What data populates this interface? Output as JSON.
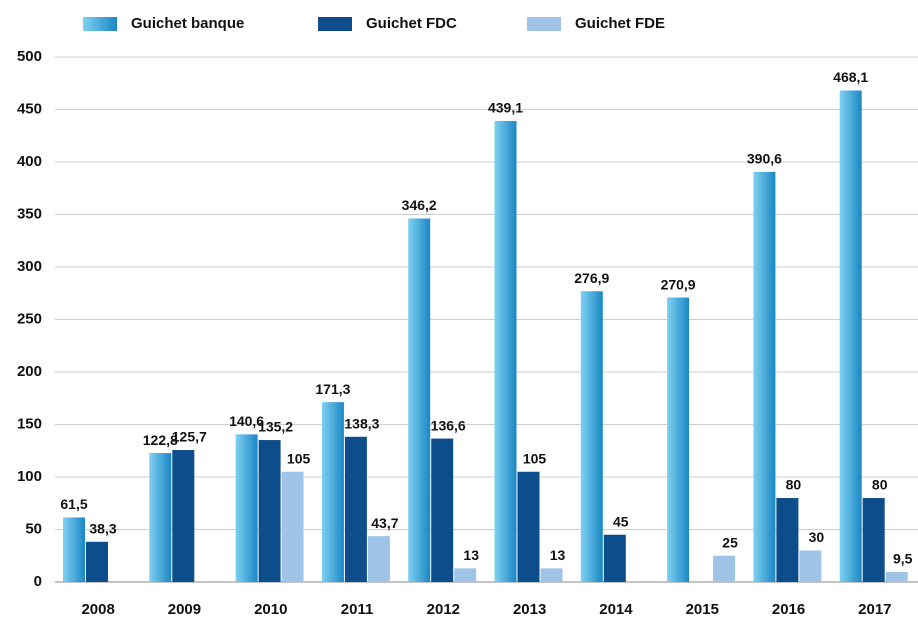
{
  "chart_data": {
    "type": "bar",
    "categories": [
      "2008",
      "2009",
      "2010",
      "2011",
      "2012",
      "2013",
      "2014",
      "2015",
      "2016",
      "2017"
    ],
    "series": [
      {
        "name": "Guichet banque",
        "color": "#2196d3",
        "values": [
          61.5,
          122.8,
          140.6,
          171.3,
          346.2,
          439.1,
          276.9,
          270.9,
          390.6,
          468.1
        ],
        "value_labels": [
          "61,5",
          "122,8",
          "140,6",
          "171,3",
          "346,2",
          "439,1",
          "276,9",
          "270,9",
          "390,6",
          "468,1"
        ]
      },
      {
        "name": "Guichet FDC",
        "color": "#0e4d8c",
        "values": [
          38.3,
          125.7,
          135.2,
          138.3,
          136.6,
          105,
          45,
          null,
          80,
          80
        ],
        "value_labels": [
          "38,3",
          "125,7",
          "135,2",
          "138,3",
          "136,6",
          "105",
          "45",
          null,
          "80",
          "80"
        ]
      },
      {
        "name": "Guichet FDE",
        "color": "#9fc4e8",
        "values": [
          null,
          null,
          105,
          43.7,
          13,
          13,
          null,
          25,
          30,
          9.5
        ],
        "value_labels": [
          null,
          null,
          "105",
          "43,7",
          "13",
          "13",
          null,
          "25",
          "30",
          "9,5"
        ]
      }
    ],
    "ylim": [
      0,
      500
    ],
    "yticks": [
      0,
      50,
      100,
      150,
      200,
      250,
      300,
      350,
      400,
      450,
      500
    ],
    "grid": true,
    "legend": "top"
  }
}
